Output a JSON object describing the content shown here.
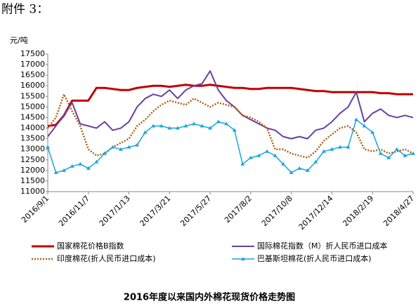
{
  "header": "附件 3：",
  "chart_data": {
    "type": "line",
    "title": "2016年度以来国内外棉花现货价格走势图",
    "y_label": "元/吨",
    "categories": [
      "2016/9/1",
      null,
      null,
      null,
      null,
      "2016/11/7",
      null,
      null,
      null,
      null,
      "2017/1/13",
      null,
      null,
      null,
      null,
      "2017/3/21",
      null,
      null,
      null,
      null,
      "2017/5/27",
      null,
      null,
      null,
      null,
      "2017/8/2",
      null,
      null,
      null,
      null,
      "2017/10/8",
      null,
      null,
      null,
      null,
      "2017/12/14",
      null,
      null,
      null,
      null,
      "2018/2/19",
      null,
      null,
      null,
      null,
      "2018/4/27"
    ],
    "ylim": [
      11000,
      17500
    ],
    "yticks": [
      11000,
      11500,
      12000,
      12500,
      13000,
      13500,
      14000,
      14500,
      15000,
      15500,
      16000,
      16500,
      17000,
      17500
    ],
    "series": [
      {
        "name": "国家棉花价格B指数",
        "color": "#c00000",
        "style": "solid",
        "values": [
          14100,
          14150,
          14600,
          15300,
          15300,
          15300,
          15900,
          15900,
          15850,
          15800,
          15800,
          15900,
          15950,
          16000,
          16000,
          15950,
          16000,
          16050,
          16000,
          16000,
          16050,
          16000,
          15950,
          15900,
          15900,
          15850,
          15850,
          15900,
          15900,
          15900,
          15900,
          15850,
          15800,
          15750,
          15750,
          15700,
          15700,
          15700,
          15700,
          15700,
          15700,
          15650,
          15650,
          15600,
          15600,
          15600
        ]
      },
      {
        "name": "国际棉花指数（M）折人民币进口成本",
        "color": "#6a3fa0",
        "style": "solid",
        "values": [
          13600,
          14100,
          14600,
          15200,
          14200,
          14100,
          14000,
          14300,
          13900,
          14000,
          14300,
          15000,
          15400,
          15600,
          15500,
          15800,
          15400,
          15800,
          16000,
          16100,
          16700,
          15800,
          15300,
          15000,
          14600,
          14400,
          14200,
          14000,
          13900,
          13600,
          13500,
          13600,
          13500,
          13900,
          14000,
          14300,
          14700,
          15000,
          15700,
          14300,
          14700,
          14900,
          14600,
          14500,
          14600,
          14500
        ]
      },
      {
        "name": "印度棉花(折人民币进口成本)",
        "color": "#b0601a",
        "style": "dotted",
        "values": [
          14000,
          14500,
          15600,
          14800,
          14100,
          13000,
          12700,
          12800,
          13100,
          13300,
          13500,
          14100,
          14400,
          14800,
          15100,
          15300,
          15200,
          15100,
          15400,
          15200,
          15000,
          15200,
          15100,
          15000,
          14600,
          14500,
          14300,
          14000,
          13000,
          13000,
          12800,
          12700,
          12600,
          12900,
          13400,
          13700,
          14000,
          14100,
          13800,
          13000,
          12900,
          13000,
          12800,
          12900,
          13000,
          12800
        ]
      },
      {
        "name": "巴基斯坦棉花(折人民币进口成本)",
        "color": "#1aa6dc",
        "style": "triangle",
        "values": [
          13100,
          11900,
          12000,
          12200,
          12300,
          12100,
          12400,
          12800,
          13100,
          13000,
          13100,
          13200,
          13800,
          14100,
          14100,
          14000,
          14000,
          14100,
          14200,
          14100,
          14000,
          14300,
          14200,
          13900,
          12300,
          12600,
          12700,
          12900,
          12700,
          12300,
          11900,
          12100,
          12000,
          12400,
          12900,
          13000,
          13100,
          13100,
          14400,
          14100,
          13800,
          12800,
          12600,
          13000,
          12700,
          12800
        ]
      }
    ]
  }
}
